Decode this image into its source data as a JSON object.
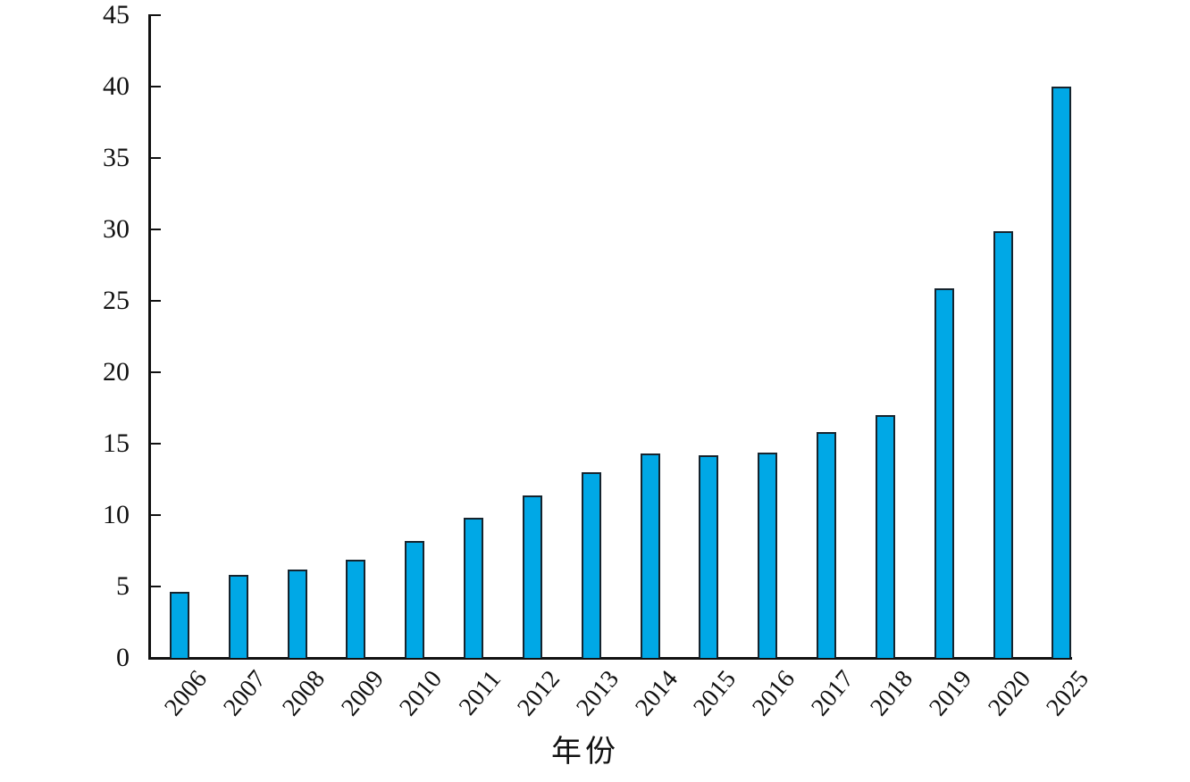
{
  "figure": {
    "background": "#ffffff",
    "axis_color": "#111111",
    "text_color": "#111111"
  },
  "chart_data": {
    "type": "bar",
    "title": "",
    "xlabel": "年份",
    "ylabel": "",
    "categories": [
      "2006",
      "2007",
      "2008",
      "2009",
      "2010",
      "2011",
      "2012",
      "2013",
      "2014",
      "2015",
      "2016",
      "2017",
      "2018",
      "2019",
      "2020",
      "2025"
    ],
    "values": [
      4.6,
      5.8,
      6.2,
      6.9,
      8.2,
      9.8,
      11.4,
      13.0,
      14.3,
      14.2,
      14.4,
      15.8,
      17.0,
      25.9,
      29.9,
      40.0
    ],
    "ylim": [
      0,
      45
    ],
    "yticks": [
      0,
      5,
      10,
      15,
      20,
      25,
      30,
      35,
      40,
      45
    ],
    "grid": false,
    "legend": null,
    "bar_fill_color": "#00A8E6",
    "bar_border_color": "#16242E",
    "xtick_rotation_deg": 50
  }
}
